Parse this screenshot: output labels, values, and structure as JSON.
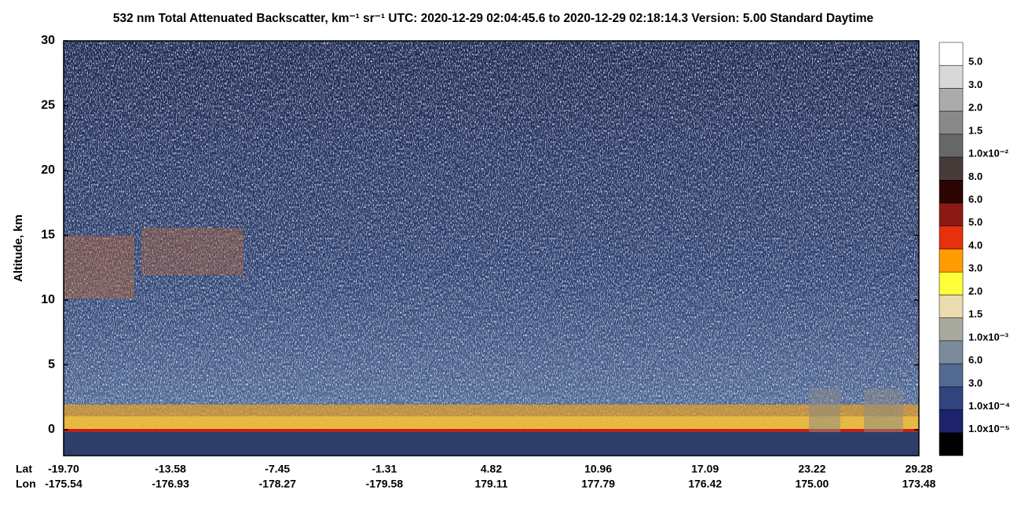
{
  "chart_data": {
    "type": "heatmap",
    "title": "532 nm Total Attenuated Backscatter, km⁻¹ sr⁻¹    UTC:  2020-12-29 02:04:45.6  to  2020-12-29 02:18:14.3    Version: 5.00  Standard  Daytime",
    "y_label": "Altitude, km",
    "ylim": [
      -2,
      30
    ],
    "yticks": [
      0,
      5,
      10,
      15,
      20,
      25,
      30
    ],
    "x_row_labels": [
      "Lat",
      "Lon"
    ],
    "lat": [
      "-19.70",
      "-13.58",
      "-7.45",
      "-1.31",
      "4.82",
      "10.96",
      "17.09",
      "23.22",
      "29.28"
    ],
    "lon": [
      "-175.54",
      "-176.93",
      "-178.27",
      "-179.58",
      "179.11",
      "177.79",
      "176.42",
      "175.00",
      "173.48"
    ],
    "colorbar": {
      "colors": [
        "#ffffff",
        "#d8d8d8",
        "#ababab",
        "#898989",
        "#676767",
        "#473c3a",
        "#2c0404",
        "#8c1a14",
        "#e8300c",
        "#ff9c00",
        "#ffff3a",
        "#eadcae",
        "#a8aaa0",
        "#7a8b9c",
        "#526a90",
        "#304480",
        "#1e226a",
        "#000000"
      ],
      "labels": [
        "5.0",
        "3.0",
        "2.0",
        "1.5",
        "1.0x10⁻²",
        "8.0",
        "6.0",
        "5.0",
        "4.0",
        "3.0",
        "2.0",
        "1.5",
        "1.0x10⁻³",
        "6.0",
        "3.0",
        "1.0x10⁻⁴",
        "1.0x10⁻⁵"
      ]
    }
  }
}
